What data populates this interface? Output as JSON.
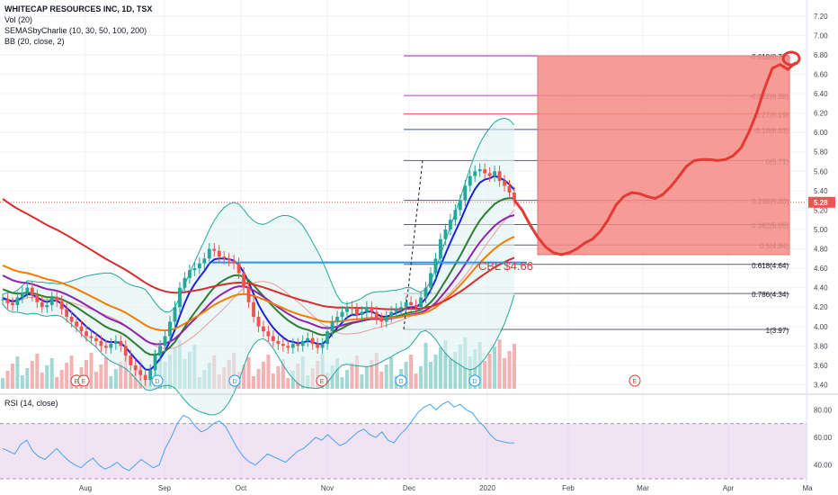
{
  "header": {
    "title": "WHITECAP RESOURCES INC, 1D, TSX",
    "indicators": [
      "Vol (20)",
      "SEMASbyCharlie (10, 30, 50, 100, 200)",
      "BB (20, close, 2)"
    ],
    "rsi_title": "RSI (14, close)"
  },
  "chart_data": {
    "type": "line",
    "symbol": "WHITECAP RESOURCES INC",
    "timeframe": "1D",
    "exchange": "TSX",
    "current_price": "5.28",
    "price_axis": {
      "ylim": [
        3.2,
        7.3
      ],
      "ticks": [
        "7.20",
        "7.00",
        "6.80",
        "6.60",
        "6.40",
        "6.20",
        "6.00",
        "5.80",
        "5.60",
        "5.40",
        "5.20",
        "5.00",
        "4.80",
        "4.60",
        "4.40",
        "4.20",
        "4.00",
        "3.80",
        "3.60",
        "3.40"
      ]
    },
    "time_axis": {
      "ticks": [
        "Aug",
        "Sep",
        "Oct",
        "Nov",
        "Dec",
        "2020",
        "Feb",
        "Mar",
        "Apr",
        "Ma"
      ]
    },
    "fib_levels": [
      {
        "label": "0(5.71)",
        "value": 5.71
      },
      {
        "label": "0.236(5.30)",
        "value": 5.3
      },
      {
        "label": "0.382(5.05)",
        "value": 5.05
      },
      {
        "label": "0.5(4.84)",
        "value": 4.84
      },
      {
        "label": "0.618(4.64)",
        "value": 4.64
      },
      {
        "label": "0.786(4.34)",
        "value": 4.34
      },
      {
        "label": "1(3.97)",
        "value": 3.97
      },
      {
        "label": "-0.18(6.03)",
        "value": 6.03
      },
      {
        "label": "-0.27(6.19)",
        "value": 6.19
      },
      {
        "label": "-0.382(6.38)",
        "value": 6.38
      },
      {
        "label": "-0.618(6.79)",
        "value": 6.79
      }
    ],
    "annotation": {
      "text": "CBL $4.66",
      "value": 4.66
    },
    "price_close": [
      4.28,
      4.24,
      4.22,
      4.3,
      4.35,
      4.4,
      4.32,
      4.25,
      4.2,
      4.22,
      4.3,
      4.26,
      4.18,
      4.1,
      4.05,
      4.0,
      3.95,
      3.9,
      3.88,
      3.85,
      3.8,
      3.78,
      3.82,
      3.85,
      3.8,
      3.7,
      3.6,
      3.55,
      3.5,
      3.45,
      3.55,
      3.7,
      3.8,
      3.9,
      4.05,
      4.2,
      4.4,
      4.5,
      4.58,
      4.6,
      4.65,
      4.7,
      4.8,
      4.78,
      4.72,
      4.7,
      4.68,
      4.65,
      4.55,
      4.4,
      4.25,
      4.1,
      4.0,
      3.95,
      3.9,
      3.85,
      3.82,
      3.8,
      3.78,
      3.82,
      3.8,
      3.85,
      3.88,
      3.82,
      3.78,
      3.82,
      3.95,
      4.05,
      4.1,
      4.15,
      4.2,
      4.18,
      4.12,
      4.15,
      4.2,
      4.15,
      4.08,
      4.05,
      4.1,
      4.15,
      4.18,
      4.2,
      4.25,
      4.22,
      4.2,
      4.3,
      4.4,
      4.55,
      4.7,
      4.9,
      5.0,
      5.1,
      5.2,
      5.3,
      5.45,
      5.55,
      5.6,
      5.62,
      5.58,
      5.55,
      5.6,
      5.5,
      5.45,
      5.38,
      5.3
    ],
    "price_forecast": [
      5.3,
      5.2,
      5.05,
      4.92,
      4.82,
      4.76,
      4.74,
      4.76,
      4.8,
      4.86,
      4.9,
      4.98,
      5.1,
      5.25,
      5.34,
      5.38,
      5.37,
      5.34,
      5.32,
      5.36,
      5.44,
      5.54,
      5.65,
      5.71,
      5.72,
      5.72,
      5.71,
      5.72,
      5.76,
      5.84,
      6.0,
      6.2,
      6.45,
      6.66,
      6.7,
      6.65,
      6.72
    ],
    "rsi": {
      "ylim": [
        30,
        90
      ],
      "ticks": [
        "80.00",
        "60.00",
        "40.00"
      ],
      "values": [
        52,
        50,
        48,
        55,
        58,
        50,
        46,
        44,
        48,
        52,
        47,
        43,
        40,
        38,
        42,
        45,
        40,
        37,
        39,
        42,
        38,
        36,
        40,
        44,
        41,
        38,
        40,
        52,
        60,
        70,
        76,
        74,
        68,
        64,
        66,
        70,
        72,
        68,
        60,
        52,
        46,
        42,
        40,
        44,
        48,
        46,
        44,
        42,
        46,
        50,
        52,
        56,
        60,
        58,
        62,
        58,
        54,
        56,
        60,
        64,
        66,
        62,
        60,
        64,
        58,
        56,
        62,
        66,
        72,
        78,
        82,
        84,
        80,
        84,
        86,
        82,
        84,
        80,
        78,
        72,
        68,
        62,
        58,
        57,
        56,
        56
      ]
    }
  }
}
